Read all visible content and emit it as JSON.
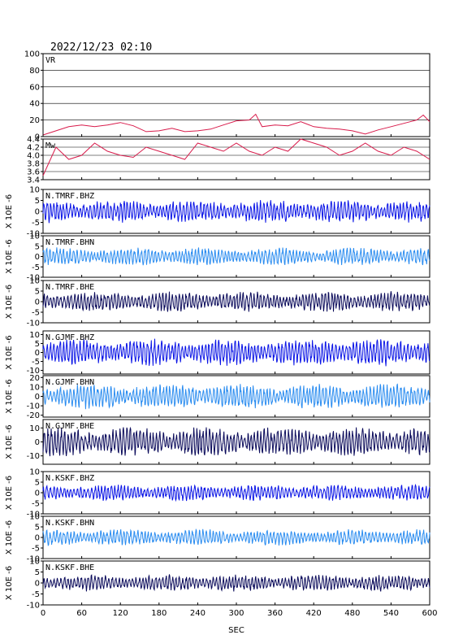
{
  "title": "2022/12/23 02:10",
  "x_label": "SEC",
  "colors": {
    "vr": "#d81b4b",
    "mw": "#d81b4b",
    "bhz": "#0a14e6",
    "bhn": "#2a8cf0",
    "bhe": "#0a0a5a"
  },
  "chart_data": [
    {
      "type": "line",
      "panel": "vr",
      "label": "VR",
      "xlim": [
        0,
        600
      ],
      "ylim": [
        0,
        100
      ],
      "yticks": [
        "0",
        "20",
        "40",
        "60",
        "80",
        "100"
      ],
      "grid": true,
      "x": [
        0,
        20,
        40,
        60,
        80,
        100,
        120,
        140,
        160,
        180,
        200,
        220,
        240,
        260,
        280,
        300,
        320,
        330,
        340,
        360,
        380,
        400,
        420,
        440,
        460,
        480,
        500,
        520,
        540,
        560,
        580,
        590,
        600
      ],
      "values": [
        2,
        7,
        12,
        14,
        12,
        14,
        17,
        13,
        6,
        7,
        10,
        6,
        7,
        9,
        14,
        19,
        20,
        27,
        12,
        14,
        13,
        18,
        12,
        10,
        9,
        7,
        3,
        8,
        12,
        16,
        20,
        26,
        18
      ]
    },
    {
      "type": "line",
      "panel": "mw",
      "label": "Mw",
      "xlim": [
        0,
        600
      ],
      "ylim": [
        3.4,
        4.4
      ],
      "yticks": [
        "3.4",
        "3.6",
        "3.8",
        "4.0",
        "4.2",
        "4.4"
      ],
      "grid": true,
      "x": [
        0,
        20,
        40,
        60,
        80,
        100,
        120,
        140,
        160,
        180,
        200,
        220,
        240,
        260,
        280,
        300,
        320,
        340,
        360,
        380,
        400,
        420,
        440,
        460,
        480,
        500,
        520,
        540,
        560,
        580,
        600
      ],
      "values": [
        3.5,
        4.2,
        3.9,
        4.0,
        4.3,
        4.1,
        4.0,
        3.95,
        4.2,
        4.1,
        4.0,
        3.9,
        4.3,
        4.2,
        4.1,
        4.3,
        4.1,
        4.0,
        4.2,
        4.1,
        4.4,
        4.3,
        4.2,
        4.0,
        4.1,
        4.3,
        4.1,
        4.0,
        4.2,
        4.1,
        3.9
      ]
    },
    {
      "type": "line",
      "panel": "trace",
      "label": "N.TMRF.BHZ",
      "color_key": "bhz",
      "xlim": [
        0,
        600
      ],
      "ylim": [
        -10,
        10
      ],
      "yticks": [
        "-10",
        "-5",
        "0",
        "5",
        "10"
      ],
      "amplitude": 5.5,
      "seed": 11,
      "ylabel": "X 10E -6"
    },
    {
      "type": "line",
      "panel": "trace",
      "label": "N.TMRF.BHN",
      "color_key": "bhn",
      "xlim": [
        0,
        600
      ],
      "ylim": [
        -10,
        10
      ],
      "yticks": [
        "-10",
        "-5",
        "0",
        "5",
        "10"
      ],
      "amplitude": 4.5,
      "seed": 23,
      "ylabel": "X 10E -6"
    },
    {
      "type": "line",
      "panel": "trace",
      "label": "N.TMRF.BHE",
      "color_key": "bhe",
      "xlim": [
        0,
        600
      ],
      "ylim": [
        -10,
        10
      ],
      "yticks": [
        "-10",
        "-5",
        "0",
        "5",
        "10"
      ],
      "amplitude": 5.0,
      "seed": 37,
      "ylabel": "X 10E -6"
    },
    {
      "type": "line",
      "panel": "trace",
      "label": "N.GJMF.BHZ",
      "color_key": "bhz",
      "xlim": [
        0,
        600
      ],
      "ylim": [
        -12,
        12
      ],
      "yticks": [
        "-10",
        "-5",
        "0",
        "5",
        "10"
      ],
      "amplitude": 8,
      "seed": 41,
      "ylabel": "X 10E -6"
    },
    {
      "type": "line",
      "panel": "trace",
      "label": "N.GJMF.BHN",
      "color_key": "bhn",
      "xlim": [
        0,
        600
      ],
      "ylim": [
        -22,
        22
      ],
      "yticks": [
        "-20",
        "-10",
        "0",
        "10",
        "20"
      ],
      "amplitude": 14,
      "seed": 53,
      "ylabel": "X 10E -6"
    },
    {
      "type": "line",
      "panel": "trace",
      "label": "N.GJMF.BHE",
      "color_key": "bhe",
      "xlim": [
        0,
        600
      ],
      "ylim": [
        -16,
        16
      ],
      "yticks": [
        "-10",
        "0",
        "10"
      ],
      "amplitude": 11,
      "seed": 67,
      "ylabel": "X 10E -6"
    },
    {
      "type": "line",
      "panel": "trace",
      "label": "N.KSKF.BHZ",
      "color_key": "bhz",
      "xlim": [
        0,
        600
      ],
      "ylim": [
        -10,
        10
      ],
      "yticks": [
        "-10",
        "-5",
        "0",
        "5",
        "10"
      ],
      "amplitude": 4,
      "seed": 71,
      "ylabel": "X 10E -6"
    },
    {
      "type": "line",
      "panel": "trace",
      "label": "N.KSKF.BHN",
      "color_key": "bhn",
      "xlim": [
        0,
        600
      ],
      "ylim": [
        -10,
        10
      ],
      "yticks": [
        "-10",
        "-5",
        "0",
        "5",
        "10"
      ],
      "amplitude": 4,
      "seed": 83,
      "ylabel": "X 10E -6"
    },
    {
      "type": "line",
      "panel": "trace",
      "label": "N.KSKF.BHE",
      "color_key": "bhe",
      "xlim": [
        0,
        600
      ],
      "ylim": [
        -10,
        10
      ],
      "yticks": [
        "-10",
        "-5",
        "0",
        "5",
        "10"
      ],
      "amplitude": 4,
      "seed": 97,
      "ylabel": "X 10E -6"
    }
  ],
  "x_ticks": [
    "0",
    "60",
    "120",
    "180",
    "240",
    "300",
    "360",
    "420",
    "480",
    "540",
    "600"
  ]
}
